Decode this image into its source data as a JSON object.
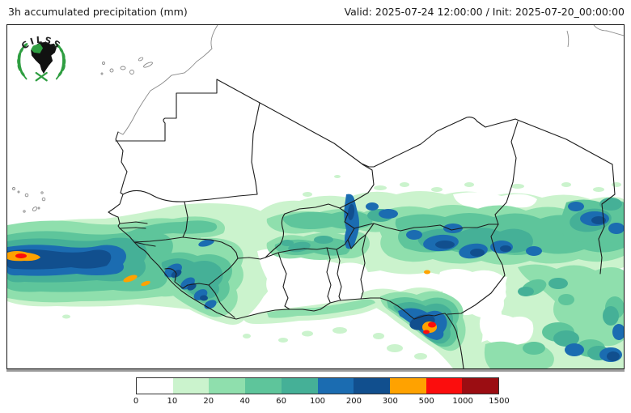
{
  "header": {
    "title": "3h accumulated precipitation (mm)",
    "validity": "Valid: 2025-07-24 12:00:00 / Init: 2025-07-20_00:00:00"
  },
  "logo": {
    "text": "CILSS"
  },
  "colorbar": {
    "unit": "mm",
    "ticks": [
      "0",
      "10",
      "20",
      "40",
      "60",
      "100",
      "200",
      "300",
      "500",
      "1000",
      "1500"
    ],
    "colors": [
      "#ffffff",
      "#cbf3cd",
      "#8fdfad",
      "#5ec59b",
      "#45b097",
      "#1b6cb1",
      "#114f8e",
      "#ffa200",
      "#fb0d0d",
      "#9b0d12"
    ]
  }
}
